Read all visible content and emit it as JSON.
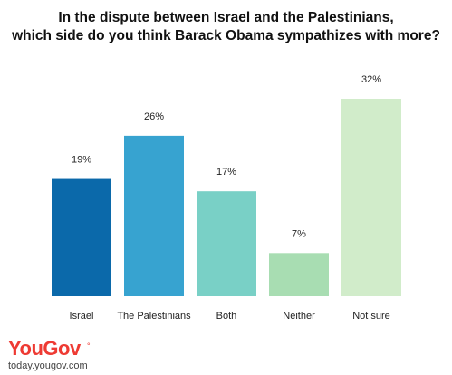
{
  "title_line1": "In the dispute between Israel and the Palestinians,",
  "title_line2": "which side do you think Barack Obama sympathizes with more?",
  "brand": {
    "name": "YouGov",
    "mark": "°",
    "site": "today.yougov.com"
  },
  "chart_data": {
    "type": "bar",
    "categories": [
      "Israel",
      "The Palestinians",
      "Both",
      "Neither",
      "Not sure"
    ],
    "values": [
      19,
      26,
      17,
      7,
      32
    ],
    "value_labels": [
      "19%",
      "26%",
      "17%",
      "7%",
      "32%"
    ],
    "colors": [
      "#0b69aa",
      "#37a3d0",
      "#79d0c6",
      "#a8ddb2",
      "#d1ecca"
    ],
    "ylim": [
      0,
      32
    ],
    "grid": false,
    "legend": "none"
  }
}
